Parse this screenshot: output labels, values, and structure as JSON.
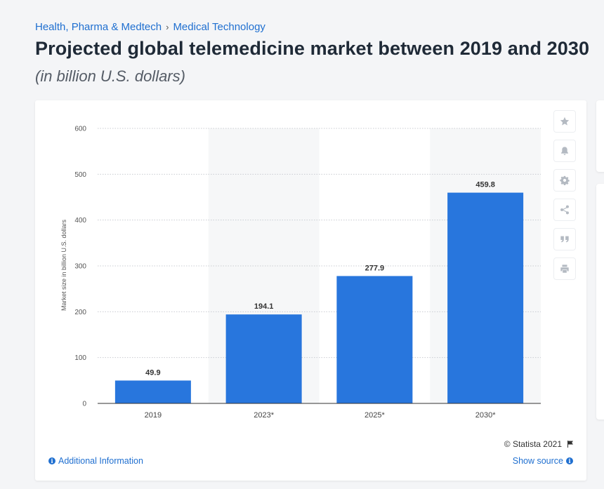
{
  "breadcrumb": {
    "items": [
      "Health, Pharma & Medtech",
      "Medical Technology"
    ],
    "separator": "›"
  },
  "header": {
    "title": "Projected global telemedicine market between 2019 and 2030",
    "subtitle": "(in billion U.S. dollars)"
  },
  "chart_data": {
    "type": "bar",
    "categories": [
      "2019",
      "2023*",
      "2025*",
      "2030*"
    ],
    "values": [
      49.9,
      194.1,
      277.9,
      459.8
    ],
    "data_labels": [
      "49.9",
      "194.1",
      "277.9",
      "459.8"
    ],
    "ylabel": "Market size in billion U.S. dollars",
    "ylim": [
      0,
      600
    ],
    "yticks": [
      "0",
      "100",
      "200",
      "300",
      "400",
      "500",
      "600"
    ],
    "ytick_values": [
      0,
      100,
      200,
      300,
      400,
      500,
      600
    ],
    "grid": "horizontal dotted",
    "alternating_column_shading": true,
    "bar_color": "#2876dd"
  },
  "toolbar": {
    "icons": [
      "star-icon",
      "bell-icon",
      "gear-icon",
      "share-icon",
      "quote-icon",
      "print-icon"
    ]
  },
  "footer": {
    "copyright": "© Statista 2021",
    "additional_info": "Additional Information",
    "show_source": "Show source"
  },
  "colors": {
    "link": "#1f6fd0",
    "bar": "#2876dd",
    "title": "#1f2a37"
  }
}
